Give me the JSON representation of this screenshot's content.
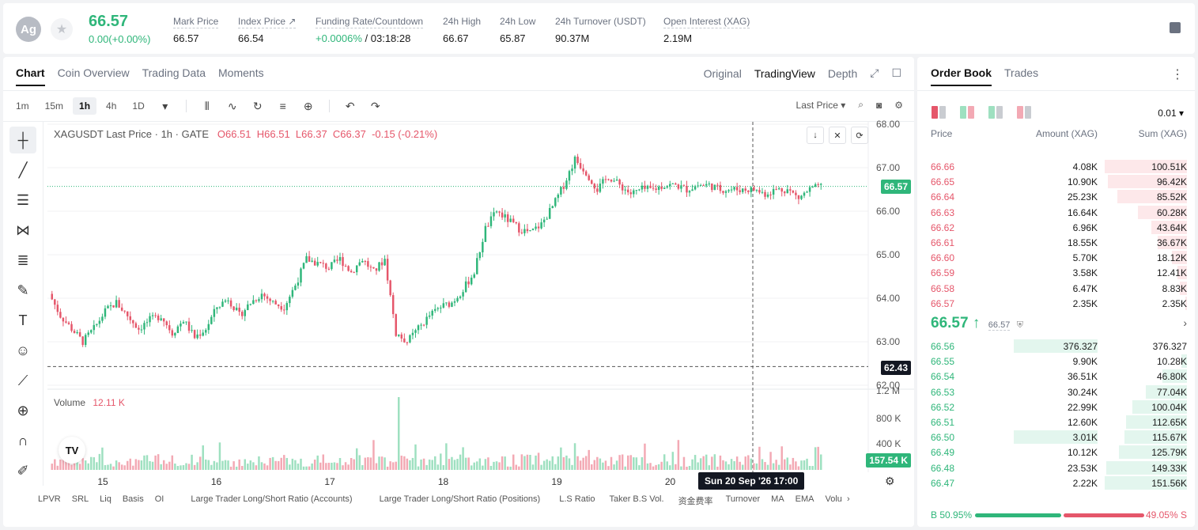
{
  "header": {
    "coin_logo": "Ag",
    "last_price": "66.57",
    "change": "0.00(+0.00%)",
    "stats": [
      {
        "label": "Mark Price",
        "value": "66.57"
      },
      {
        "label": "Index Price ↗",
        "value": "66.54"
      },
      {
        "label": "Funding Rate/Countdown",
        "value_green": "+0.0006%",
        "value": " / 03:18:28"
      },
      {
        "label": "24h High",
        "value": "66.67"
      },
      {
        "label": "24h Low",
        "value": "65.87"
      },
      {
        "label": "24h Turnover (USDT)",
        "value": "90.37M"
      },
      {
        "label": "Open Interest (XAG)",
        "value": "2.19M"
      }
    ]
  },
  "chart_panel": {
    "tabs": [
      "Chart",
      "Coin Overview",
      "Trading Data",
      "Moments"
    ],
    "view_tabs": [
      "Original",
      "TradingView",
      "Depth"
    ],
    "intervals": [
      "1m",
      "15m",
      "1h",
      "4h",
      "1D"
    ],
    "active_interval": "1h",
    "price_type": "Last Price ▾",
    "legend": {
      "symbol": "XAGUSDT Last Price · 1h · GATE",
      "o": "O66.51",
      "h": "H66.51",
      "l": "L66.37",
      "c": "C66.37",
      "chg": "-0.15 (-0.21%)"
    },
    "volume_label": "Volume",
    "volume_value": "12.11 K",
    "time_tooltip": "Sun 20 Sep '26   17:00",
    "last_price_tag": "66.57",
    "crosshair_price_tag": "62.43",
    "volume_tag": "157.54 K",
    "tv_logo": "TV",
    "bottom_indicators": [
      "LPVR",
      "SRL",
      "Liq",
      "Basis",
      "OI",
      "Large Trader Long/Short Ratio (Accounts)",
      "Large Trader Long/Short Ratio (Positions)",
      "L.S Ratio",
      "Taker B.S Vol.",
      "资金费率",
      "Turnover",
      "MA",
      "EMA",
      "Volu"
    ]
  },
  "chart_data": {
    "type": "candlestick",
    "title": "XAGUSDT Last Price · 1h · GATE",
    "price_axis": [
      "68.00",
      "67.00",
      "66.00",
      "65.00",
      "64.00",
      "63.00",
      "62.00"
    ],
    "volume_axis": [
      "1.2 M",
      "800 K",
      "400 K"
    ],
    "x_ticks": [
      "15",
      "16",
      "17",
      "18",
      "19",
      "20"
    ],
    "ylim": [
      62.0,
      68.0
    ],
    "last_price": 66.57,
    "crosshair_price": 62.43,
    "close_path": [
      64.1,
      63.6,
      63.3,
      63.0,
      63.3,
      63.7,
      63.9,
      63.6,
      63.3,
      63.5,
      63.6,
      63.2,
      63.5,
      63.1,
      63.3,
      63.8,
      64.0,
      63.6,
      63.9,
      64.1,
      63.9,
      63.8,
      64.3,
      64.9,
      64.8,
      64.7,
      64.9,
      64.6,
      64.9,
      64.6,
      64.9,
      63.2,
      63.0,
      63.3,
      63.6,
      63.8,
      63.9,
      64.2,
      64.6,
      65.6,
      66.0,
      65.8,
      65.6,
      65.5,
      65.7,
      66.1,
      66.6,
      67.2,
      66.9,
      66.5,
      66.8,
      66.6,
      66.4,
      66.5,
      66.5,
      66.6,
      66.6,
      66.5,
      66.6,
      66.6,
      66.5,
      66.5,
      66.5,
      66.5,
      66.4,
      66.5,
      66.5,
      66.3,
      66.5,
      66.57
    ],
    "volume_spike_index": 31
  },
  "order_book": {
    "tabs": [
      "Order Book",
      "Trades"
    ],
    "precision": "0.01 ▾",
    "headers": {
      "price": "Price",
      "amount": "Amount (XAG)",
      "sum": "Sum (XAG)"
    },
    "asks": [
      {
        "price": "66.66",
        "amount": "4.08K",
        "sum": "100.51K",
        "depth": 1.0
      },
      {
        "price": "66.65",
        "amount": "10.90K",
        "sum": "96.42K",
        "depth": 0.96
      },
      {
        "price": "66.64",
        "amount": "25.23K",
        "sum": "85.52K",
        "depth": 0.85
      },
      {
        "price": "66.63",
        "amount": "16.64K",
        "sum": "60.28K",
        "depth": 0.6
      },
      {
        "price": "66.62",
        "amount": "6.96K",
        "sum": "43.64K",
        "depth": 0.43
      },
      {
        "price": "66.61",
        "amount": "18.55K",
        "sum": "36.67K",
        "depth": 0.36
      },
      {
        "price": "66.60",
        "amount": "5.70K",
        "sum": "18.12K",
        "depth": 0.18
      },
      {
        "price": "66.59",
        "amount": "3.58K",
        "sum": "12.41K",
        "depth": 0.12
      },
      {
        "price": "66.58",
        "amount": "6.47K",
        "sum": "8.83K",
        "depth": 0.09
      },
      {
        "price": "66.57",
        "amount": "2.35K",
        "sum": "2.35K",
        "depth": 0.02
      }
    ],
    "mid_price": "66.57 ↑",
    "mark_price": "66.57",
    "bids": [
      {
        "price": "66.56",
        "amount": "376.327",
        "sum": "376.327",
        "depth": 0.0,
        "amt_depth": 1.0
      },
      {
        "price": "66.55",
        "amount": "9.90K",
        "sum": "10.28K",
        "depth": 0.07,
        "amt_depth": 0.0
      },
      {
        "price": "66.54",
        "amount": "36.51K",
        "sum": "46.80K",
        "depth": 0.3,
        "amt_depth": 0.0
      },
      {
        "price": "66.53",
        "amount": "30.24K",
        "sum": "77.04K",
        "depth": 0.5,
        "amt_depth": 0.0
      },
      {
        "price": "66.52",
        "amount": "22.99K",
        "sum": "100.04K",
        "depth": 0.66,
        "amt_depth": 0.0
      },
      {
        "price": "66.51",
        "amount": "12.60K",
        "sum": "112.65K",
        "depth": 0.74,
        "amt_depth": 0.0
      },
      {
        "price": "66.50",
        "amount": "3.01K",
        "sum": "115.67K",
        "depth": 0.76,
        "amt_depth": 1.0
      },
      {
        "price": "66.49",
        "amount": "10.12K",
        "sum": "125.79K",
        "depth": 0.83,
        "amt_depth": 0.0
      },
      {
        "price": "66.48",
        "amount": "23.53K",
        "sum": "149.33K",
        "depth": 0.98,
        "amt_depth": 0.0
      },
      {
        "price": "66.47",
        "amount": "2.22K",
        "sum": "151.56K",
        "depth": 1.0,
        "amt_depth": 0.0
      }
    ],
    "buy_ratio": "B 50.95%",
    "sell_ratio": "49.05% S",
    "buy_fraction": 0.5095
  }
}
